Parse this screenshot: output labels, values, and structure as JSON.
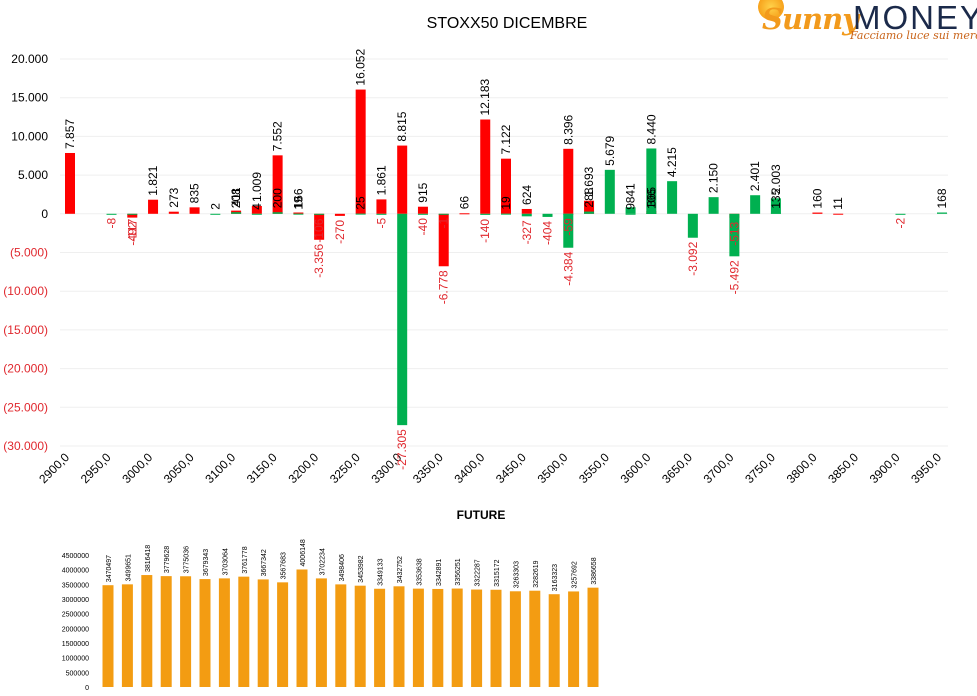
{
  "logo": {
    "brand_sunny": "Sunny",
    "brand_money": "MONEY",
    "tagline": "Facciamo luce sui mercati",
    "colors": {
      "sunny": "#f29a1c",
      "money": "#1b2a4a"
    }
  },
  "chart_data": [
    {
      "type": "bar",
      "title": "STOXX50 DICEMBRE",
      "ylim": [
        -30000,
        20000
      ],
      "yticks": [
        "(30.000)",
        "(25.000)",
        "(20.000)",
        "(15.000)",
        "(10.000)",
        "(5.000)",
        "0",
        "5.000",
        "10.000",
        "15.000",
        "20.000"
      ],
      "yticks_values": [
        -30000,
        -25000,
        -20000,
        -15000,
        -10000,
        -5000,
        0,
        5000,
        10000,
        15000,
        20000
      ],
      "x_tick_labels": [
        "2900,0",
        "2950,0",
        "3000,0",
        "3050,0",
        "3100,0",
        "3150,0",
        "3200,0",
        "3250,0",
        "3300,0",
        "3350,0",
        "3400,0",
        "3450,0",
        "3500,0",
        "3550,0",
        "3600,0",
        "3650,0",
        "3700,0",
        "3750,0",
        "3800,0",
        "3850,0",
        "3900,0",
        "3950,0"
      ],
      "grid": true,
      "legend": "none",
      "colors": {
        "red": "#ff0000",
        "green": "#00b050",
        "positive_label": "#000000",
        "negative_label": "#e0282e"
      },
      "series": [
        {
          "color": "red",
          "points": [
            {
              "x": 2900,
              "value": 7857,
              "label": "7.857"
            },
            {
              "x": 2975,
              "value": -492,
              "label": "-492"
            },
            {
              "x": 3000,
              "value": 1821,
              "label": "1.821"
            },
            {
              "x": 3025,
              "value": 273,
              "label": "273"
            },
            {
              "x": 3050,
              "value": 835,
              "label": "835"
            },
            {
              "x": 3100,
              "value": 411,
              "label": "411"
            },
            {
              "x": 3125,
              "value": 1009,
              "label": "1.009"
            },
            {
              "x": 3150,
              "value": 7552,
              "label": "7.552"
            },
            {
              "x": 3175,
              "value": 166,
              "label": "166"
            },
            {
              "x": 3200,
              "value": -3356,
              "label": "-3.356"
            },
            {
              "x": 3225,
              "value": -270,
              "label": "-270"
            },
            {
              "x": 3250,
              "value": 16052,
              "label": "16.052"
            },
            {
              "x": 3275,
              "value": 1861,
              "label": "1.861"
            },
            {
              "x": 3300,
              "value": 8815,
              "label": "8.815"
            },
            {
              "x": 3325,
              "value": 915,
              "label": "915"
            },
            {
              "x": 3350,
              "value": -6778,
              "label": "-6.778"
            },
            {
              "x": 3375,
              "value": 66,
              "label": "66"
            },
            {
              "x": 3400,
              "value": 12183,
              "label": "12.183"
            },
            {
              "x": 3425,
              "value": 7122,
              "label": "7.122"
            },
            {
              "x": 3450,
              "value": 624,
              "label": "624"
            },
            {
              "x": 3500,
              "value": 8396,
              "label": "8.396"
            },
            {
              "x": 3525,
              "value": 1693,
              "label": "1.693"
            },
            {
              "x": 3600,
              "value": 365,
              "label": "365"
            },
            {
              "x": 3700,
              "value": -513,
              "label": "-513"
            },
            {
              "x": 3800,
              "value": 160,
              "label": "160"
            },
            {
              "x": 3825,
              "value": 11,
              "label": "11"
            }
          ]
        },
        {
          "color": "green",
          "points": [
            {
              "x": 2950,
              "value": -8,
              "label": "-8"
            },
            {
              "x": 2975,
              "value": -117,
              "label": "-117"
            },
            {
              "x": 3075,
              "value": 2,
              "label": "2"
            },
            {
              "x": 3100,
              "value": 208,
              "label": "208"
            },
            {
              "x": 3125,
              "value": 4,
              "label": "4"
            },
            {
              "x": 3150,
              "value": 200,
              "label": "200"
            },
            {
              "x": 3175,
              "value": 19,
              "label": "19"
            },
            {
              "x": 3200,
              "value": -106,
              "label": "-106"
            },
            {
              "x": 3250,
              "value": 25,
              "label": "25"
            },
            {
              "x": 3275,
              "value": -5,
              "label": "-5"
            },
            {
              "x": 3300,
              "value": -27305,
              "label": "-27.305"
            },
            {
              "x": 3325,
              "value": -40,
              "label": "-40"
            },
            {
              "x": 3350,
              "value": -1,
              "label": "-1"
            },
            {
              "x": 3400,
              "value": -140,
              "label": "-140"
            },
            {
              "x": 3425,
              "value": 19,
              "label": "19"
            },
            {
              "x": 3450,
              "value": -327,
              "label": "-327"
            },
            {
              "x": 3475,
              "value": -404,
              "label": "-404"
            },
            {
              "x": 3500,
              "value": -59,
              "label": "-59"
            },
            {
              "x": 3500,
              "value": -4384,
              "label": "-4.384"
            },
            {
              "x": 3525,
              "value": 288,
              "label": "288"
            },
            {
              "x": 3550,
              "value": 5679,
              "label": "5.679"
            },
            {
              "x": 3575,
              "value": 9,
              "label": "9"
            },
            {
              "x": 3575,
              "value": 841,
              "label": "841"
            },
            {
              "x": 3600,
              "value": 106,
              "label": "106"
            },
            {
              "x": 3600,
              "value": 8440,
              "label": "8.440"
            },
            {
              "x": 3625,
              "value": 4215,
              "label": "4.215"
            },
            {
              "x": 3650,
              "value": -3092,
              "label": "-3.092"
            },
            {
              "x": 3675,
              "value": 2150,
              "label": "2.150"
            },
            {
              "x": 3700,
              "value": -5492,
              "label": "-5.492"
            },
            {
              "x": 3725,
              "value": 2401,
              "label": "2.401"
            },
            {
              "x": 3750,
              "value": 135,
              "label": "135"
            },
            {
              "x": 3750,
              "value": 2003,
              "label": "2.003"
            },
            {
              "x": 3900,
              "value": -2,
              "label": "-2"
            },
            {
              "x": 3950,
              "value": 168,
              "label": "168"
            }
          ]
        }
      ]
    },
    {
      "type": "bar",
      "title": "FUTURE",
      "ylim": [
        0,
        4500000
      ],
      "yticks": [
        "0",
        "500000",
        "1000000",
        "1500000",
        "2000000",
        "2500000",
        "3000000",
        "3500000",
        "4000000",
        "4500000"
      ],
      "yticks_values": [
        0,
        500000,
        1000000,
        1500000,
        2000000,
        2500000,
        3000000,
        3500000,
        4000000,
        4500000
      ],
      "bar_color": "#f39c12",
      "values": [
        3470497,
        3499651,
        3816418,
        3779628,
        3775036,
        3679343,
        3703064,
        3761778,
        3667342,
        3567683,
        4006148,
        3702234,
        3498406,
        3453982,
        3349133,
        3432752,
        3353638,
        3342891,
        3356251,
        3322287,
        3315172,
        3263303,
        3282619,
        3163323,
        3257692,
        3386658
      ],
      "labels": [
        "3470497",
        "3499651",
        "3816418",
        "3779628",
        "3775036",
        "3679343",
        "3703064",
        "3761778",
        "3667342",
        "3567683",
        "4006148",
        "3702234",
        "3498406",
        "3453982",
        "3349133",
        "3432752",
        "3353638",
        "3342891",
        "3356251",
        "3322287",
        "3315172",
        "3263303",
        "3282619",
        "3163323",
        "3257692",
        "3386658"
      ]
    }
  ]
}
